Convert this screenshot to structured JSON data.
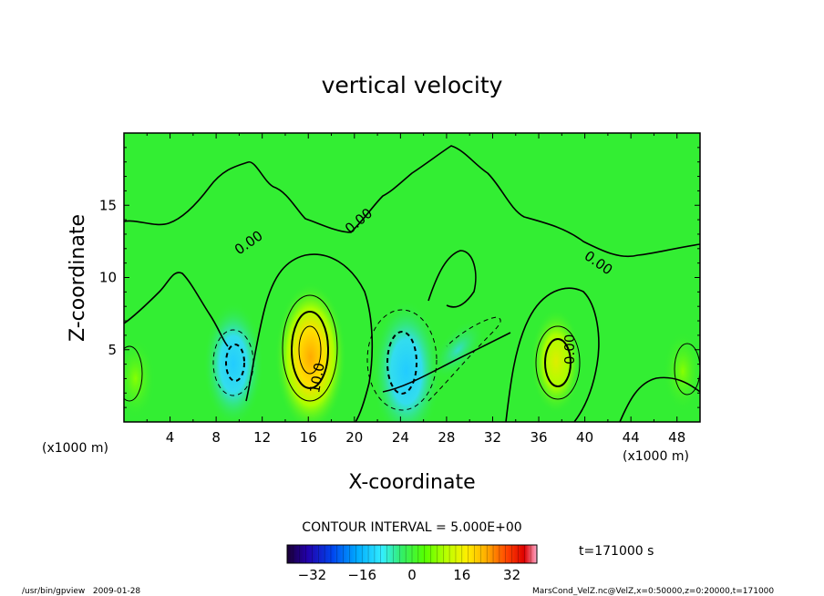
{
  "chart_data": {
    "type": "heatmap",
    "title": "vertical velocity",
    "xlabel": "X-coordinate",
    "ylabel": "Z-coordinate",
    "x_unit_left": "(x1000 m)",
    "x_unit_right": "(x1000 m)",
    "xlim": [
      0,
      50
    ],
    "ylim": [
      0,
      20
    ],
    "x_ticks": [
      4,
      8,
      12,
      16,
      20,
      24,
      28,
      32,
      36,
      40,
      44,
      48
    ],
    "y_ticks": [
      5,
      10,
      15
    ],
    "contour_interval_text": "CONTOUR INTERVAL = 5.000E+00",
    "contour_labels": [
      "0.00",
      "0.00",
      "10.0",
      "0.00",
      "0.00"
    ],
    "time_text": "t=171000 s",
    "colorbar": {
      "range": [
        -40,
        40
      ],
      "ticks": [
        -32,
        -16,
        0,
        16,
        32
      ],
      "colors": [
        "#1a0033",
        "#2200aa",
        "#0044ee",
        "#00aaff",
        "#33eeff",
        "#33ee66",
        "#55ff00",
        "#bbff00",
        "#ffee00",
        "#ffaa00",
        "#ff4400",
        "#dd0000",
        "#ffaacc"
      ]
    },
    "features": [
      {
        "x": 16.2,
        "z": 4.5,
        "value": 17,
        "sign": "positive"
      },
      {
        "x": 37.5,
        "z": 4.2,
        "value": 10,
        "sign": "positive"
      },
      {
        "x": 24.5,
        "z": 3.5,
        "value": -16,
        "sign": "negative"
      },
      {
        "x": 9.5,
        "z": 4.0,
        "value": -13,
        "sign": "negative"
      },
      {
        "x": 29.0,
        "z": 5.0,
        "value": -5,
        "sign": "negative"
      },
      {
        "x": 1.0,
        "z": 3.0,
        "value": 6,
        "sign": "positive"
      },
      {
        "x": 48.5,
        "z": 3.5,
        "value": 6,
        "sign": "positive"
      }
    ]
  },
  "footer": {
    "left": "/usr/bin/gpview   2009-01-28",
    "right": "MarsCond_VelZ.nc@VelZ,x=0:50000,z=0:20000,t=171000"
  },
  "colors": {
    "background_field": "#33ee33",
    "positive_core": "#ffcc00",
    "negative_core": "#33ddff"
  }
}
